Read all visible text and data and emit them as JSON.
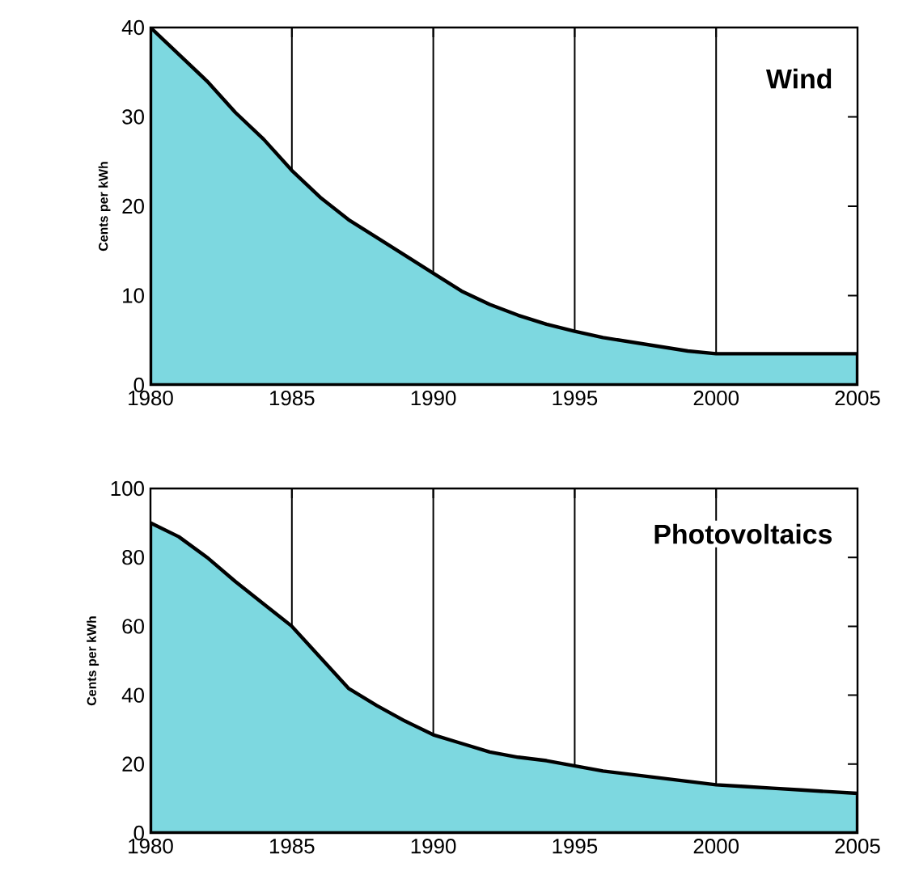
{
  "chart_data": [
    {
      "type": "area",
      "title": "Wind",
      "ylabel": "Cents per kWh",
      "color": "#7dd8e0",
      "x": [
        1980,
        1981,
        1982,
        1983,
        1984,
        1985,
        1986,
        1987,
        1988,
        1989,
        1990,
        1991,
        1992,
        1993,
        1994,
        1995,
        1996,
        1997,
        1998,
        1999,
        2000,
        2005
      ],
      "values": [
        40,
        37,
        34,
        30.5,
        27.5,
        24,
        21,
        18.5,
        16.5,
        14.5,
        12.5,
        10.5,
        9,
        7.8,
        6.8,
        6,
        5.3,
        4.8,
        4.3,
        3.8,
        3.5,
        3.5
      ],
      "xlim": [
        1980,
        2005
      ],
      "ylim": [
        0,
        40
      ],
      "xticks": [
        1980,
        1985,
        1990,
        1995,
        2000,
        2005
      ],
      "yticks": [
        0,
        10,
        20,
        30,
        40
      ],
      "grid": "x"
    },
    {
      "type": "area",
      "title": "Photovoltaics",
      "ylabel": "Cents per kWh",
      "color": "#7dd8e0",
      "x": [
        1980,
        1981,
        1982,
        1983,
        1984,
        1985,
        1986,
        1987,
        1988,
        1989,
        1990,
        1991,
        1992,
        1993,
        1994,
        1995,
        1996,
        1997,
        1998,
        1999,
        2000,
        2001,
        2002,
        2003,
        2004,
        2005
      ],
      "values": [
        90,
        86,
        80,
        73,
        66.5,
        60,
        51,
        42,
        37,
        32.5,
        28.5,
        26,
        23.5,
        22,
        21,
        19.5,
        18,
        17,
        16,
        15,
        14,
        13.5,
        13,
        12.5,
        12,
        11.5
      ],
      "xlim": [
        1980,
        2005
      ],
      "ylim": [
        0,
        100
      ],
      "xticks": [
        1980,
        1985,
        1990,
        1995,
        2000,
        2005
      ],
      "yticks": [
        0,
        20,
        40,
        60,
        80,
        100
      ],
      "grid": "x"
    }
  ]
}
